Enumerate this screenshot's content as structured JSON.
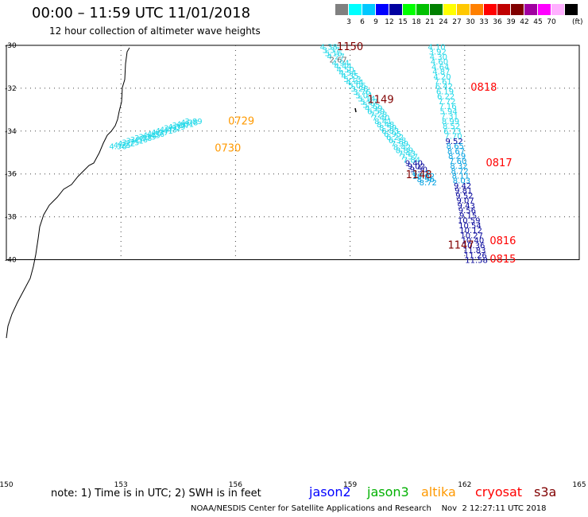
{
  "title": "00:00 – 11:59 UTC 11/01/2018",
  "subtitle": "12 hour collection of altimeter wave heights",
  "colorbar": {
    "colors": [
      "#808080",
      "#00ffff",
      "#00c8ff",
      "#0000ff",
      "#0000a0",
      "#00ff00",
      "#00c000",
      "#008000",
      "#ffff00",
      "#ffc800",
      "#ff8000",
      "#ff0000",
      "#c00000",
      "#800000",
      "#a000a0",
      "#ff00ff",
      "#ffb0ff",
      "#000000"
    ],
    "labels": [
      "3",
      "6",
      "9",
      "12",
      "15",
      "18",
      "21",
      "24",
      "27",
      "30",
      "33",
      "36",
      "39",
      "42",
      "45",
      "70"
    ],
    "unit": "(ft)"
  },
  "axes": {
    "lon_ticks": [
      "150",
      "153",
      "156",
      "159",
      "162",
      "165"
    ],
    "lat_ticks": [
      "-30",
      "-32",
      "-34",
      "-36",
      "-38",
      "-40"
    ]
  },
  "colors": {
    "cyan": "#20d8e8",
    "mid": "#00a0e0",
    "navy": "#000099",
    "gray": "#707070",
    "orange": "#ff9900",
    "red": "#ff0000",
    "darkred": "#800000"
  },
  "tracks": [
    {
      "lon": 154.9,
      "lat0": -33.52,
      "lat1": -34.7,
      "vals": [
        [
          "3.89",
          "cyan"
        ],
        [
          "4.28",
          "cyan"
        ],
        [
          "4.01",
          "cyan"
        ],
        [
          "3.57",
          "cyan"
        ],
        [
          "4.39",
          "cyan"
        ],
        [
          "3.92",
          "cyan"
        ],
        [
          "4.43",
          "cyan"
        ],
        [
          "4.41",
          "cyan"
        ],
        [
          "4.37",
          "cyan"
        ],
        [
          "4.56",
          "cyan"
        ],
        [
          "4.45",
          "cyan"
        ],
        [
          "3.39",
          "cyan"
        ],
        [
          "3.58",
          "cyan"
        ],
        [
          "3.56",
          "cyan"
        ],
        [
          "3.41",
          "cyan"
        ],
        [
          "3.75",
          "cyan"
        ],
        [
          "4.22",
          "cyan"
        ],
        [
          "4.25",
          "cyan"
        ],
        [
          "4.36",
          "cyan"
        ]
      ]
    },
    {
      "lon": 158.4,
      "lat0": -30.05,
      "lat1": -36.38,
      "vals": [
        [
          "4.38",
          "cyan"
        ],
        [
          "3.37",
          "cyan"
        ],
        [
          "5.16",
          "cyan"
        ],
        [
          "4.27",
          "cyan"
        ],
        [
          "2.67",
          "gray"
        ],
        [
          "4.94",
          "cyan"
        ],
        [
          "4.44",
          "cyan"
        ],
        [
          "4.50",
          "cyan"
        ],
        [
          "4.54",
          "cyan"
        ],
        [
          "4.35",
          "cyan"
        ],
        [
          "5.13",
          "cyan"
        ],
        [
          "4.44",
          "cyan"
        ],
        [
          "5.06",
          "cyan"
        ],
        [
          "3.28",
          "cyan"
        ],
        [
          "3.76",
          "cyan"
        ],
        [
          "5.01",
          "cyan"
        ],
        [
          "5.14",
          "cyan"
        ],
        [
          "5.87",
          "cyan"
        ],
        [
          "5.95",
          "cyan"
        ],
        [
          "4.99",
          "cyan"
        ],
        [
          "6.59",
          "cyan"
        ],
        [
          "7.28",
          "cyan"
        ],
        [
          "7.40",
          "cyan"
        ],
        [
          "8.41",
          "cyan"
        ],
        [
          "8.48",
          "cyan"
        ],
        [
          "8.59",
          "cyan"
        ],
        [
          "6.83",
          "cyan"
        ],
        [
          "6.95",
          "cyan"
        ],
        [
          "6.22",
          "cyan"
        ],
        [
          "6.38",
          "cyan"
        ],
        [
          "7.99",
          "cyan"
        ],
        [
          "8.42",
          "cyan"
        ],
        [
          "8.89",
          "cyan"
        ],
        [
          "7.43",
          "cyan"
        ],
        [
          "7.57",
          "cyan"
        ],
        [
          "7.84",
          "cyan"
        ],
        [
          "9.40",
          "navy"
        ],
        [
          "9.02",
          "navy"
        ],
        [
          "9.50",
          "navy"
        ],
        [
          "8.42",
          "mid"
        ],
        [
          "10.02",
          "mid"
        ],
        [
          "8.96",
          "mid"
        ],
        [
          "8.72",
          "mid"
        ]
      ]
    },
    {
      "lon": 161.1,
      "lat0": -30.05,
      "lat1": -40.0,
      "vals": [
        [
          "4.10",
          "cyan"
        ],
        [
          "3.92",
          "cyan"
        ],
        [
          "4.30",
          "cyan"
        ],
        [
          "4.60",
          "cyan"
        ],
        [
          "4.64",
          "cyan"
        ],
        [
          "4.87",
          "cyan"
        ],
        [
          "4.20",
          "cyan"
        ],
        [
          "7.61",
          "cyan"
        ],
        [
          "6.42",
          "cyan"
        ],
        [
          "6.19",
          "cyan"
        ],
        [
          "6.22",
          "cyan"
        ],
        [
          "7.72",
          "cyan"
        ],
        [
          "7.16",
          "cyan"
        ],
        [
          "5.94",
          "cyan"
        ],
        [
          "7.31",
          "cyan"
        ],
        [
          "8.99",
          "cyan"
        ],
        [
          "8.52",
          "cyan"
        ],
        [
          "6.73",
          "cyan"
        ],
        [
          "7.70",
          "cyan"
        ],
        [
          "9.52",
          "navy"
        ],
        [
          "8.65",
          "mid"
        ],
        [
          "8.67",
          "mid"
        ],
        [
          "8.29",
          "mid"
        ],
        [
          "7.60",
          "mid"
        ],
        [
          "8.32",
          "mid"
        ],
        [
          "8.72",
          "mid"
        ],
        [
          "8.11",
          "mid"
        ],
        [
          "8.03",
          "mid"
        ],
        [
          "9.42",
          "navy"
        ],
        [
          "9.81",
          "navy"
        ],
        [
          "9.52",
          "navy"
        ],
        [
          "9.07",
          "navy"
        ],
        [
          "9.43",
          "navy"
        ],
        [
          "9.56",
          "navy"
        ],
        [
          "9.15",
          "navy"
        ],
        [
          "10.59",
          "navy"
        ],
        [
          "10.54",
          "navy"
        ],
        [
          "10.12",
          "navy"
        ],
        [
          "10.27",
          "navy"
        ],
        [
          "10.40",
          "navy"
        ],
        [
          "10.36",
          "navy"
        ],
        [
          "11.83",
          "navy"
        ],
        [
          "11.26",
          "navy"
        ],
        [
          "11.58",
          "navy"
        ]
      ]
    }
  ],
  "time_labels": [
    {
      "text": "1150",
      "color": "darkred",
      "lon": 159.0,
      "lat": -30.08
    },
    {
      "text": "0818",
      "color": "red",
      "lon": 162.5,
      "lat": -31.97
    },
    {
      "text": "1149",
      "color": "darkred",
      "lon": 159.8,
      "lat": -32.55
    },
    {
      "text": "0729",
      "color": "orange",
      "lon": 156.15,
      "lat": -33.55
    },
    {
      "text": "0730",
      "color": "orange",
      "lon": 155.8,
      "lat": -34.8
    },
    {
      "text": "0817",
      "color": "red",
      "lon": 162.9,
      "lat": -35.5
    },
    {
      "text": "1148",
      "color": "darkred",
      "lon": 160.8,
      "lat": -36.05
    },
    {
      "text": "0816",
      "color": "red",
      "lon": 163.0,
      "lat": -39.13
    },
    {
      "text": "1147",
      "color": "darkred",
      "lon": 161.9,
      "lat": -39.33
    },
    {
      "text": "0815",
      "color": "red",
      "lon": 163.0,
      "lat": -39.98
    }
  ],
  "legend": [
    {
      "text": "jason2",
      "color": "#0000ff",
      "x": 389
    },
    {
      "text": "jason3",
      "color": "#00b000",
      "x": 462
    },
    {
      "text": "altika",
      "color": "#ff9900",
      "x": 530
    },
    {
      "text": "cryosat",
      "color": "#ff0000",
      "x": 598
    },
    {
      "text": "s3a",
      "color": "#800000",
      "x": 672
    }
  ],
  "note": "note:  1) Time is in UTC;  2) SWH is in feet",
  "credit": "NOAA/NESDIS Center for Satellite Applications and Research    Nov  2 12:27:11 UTC 2018"
}
